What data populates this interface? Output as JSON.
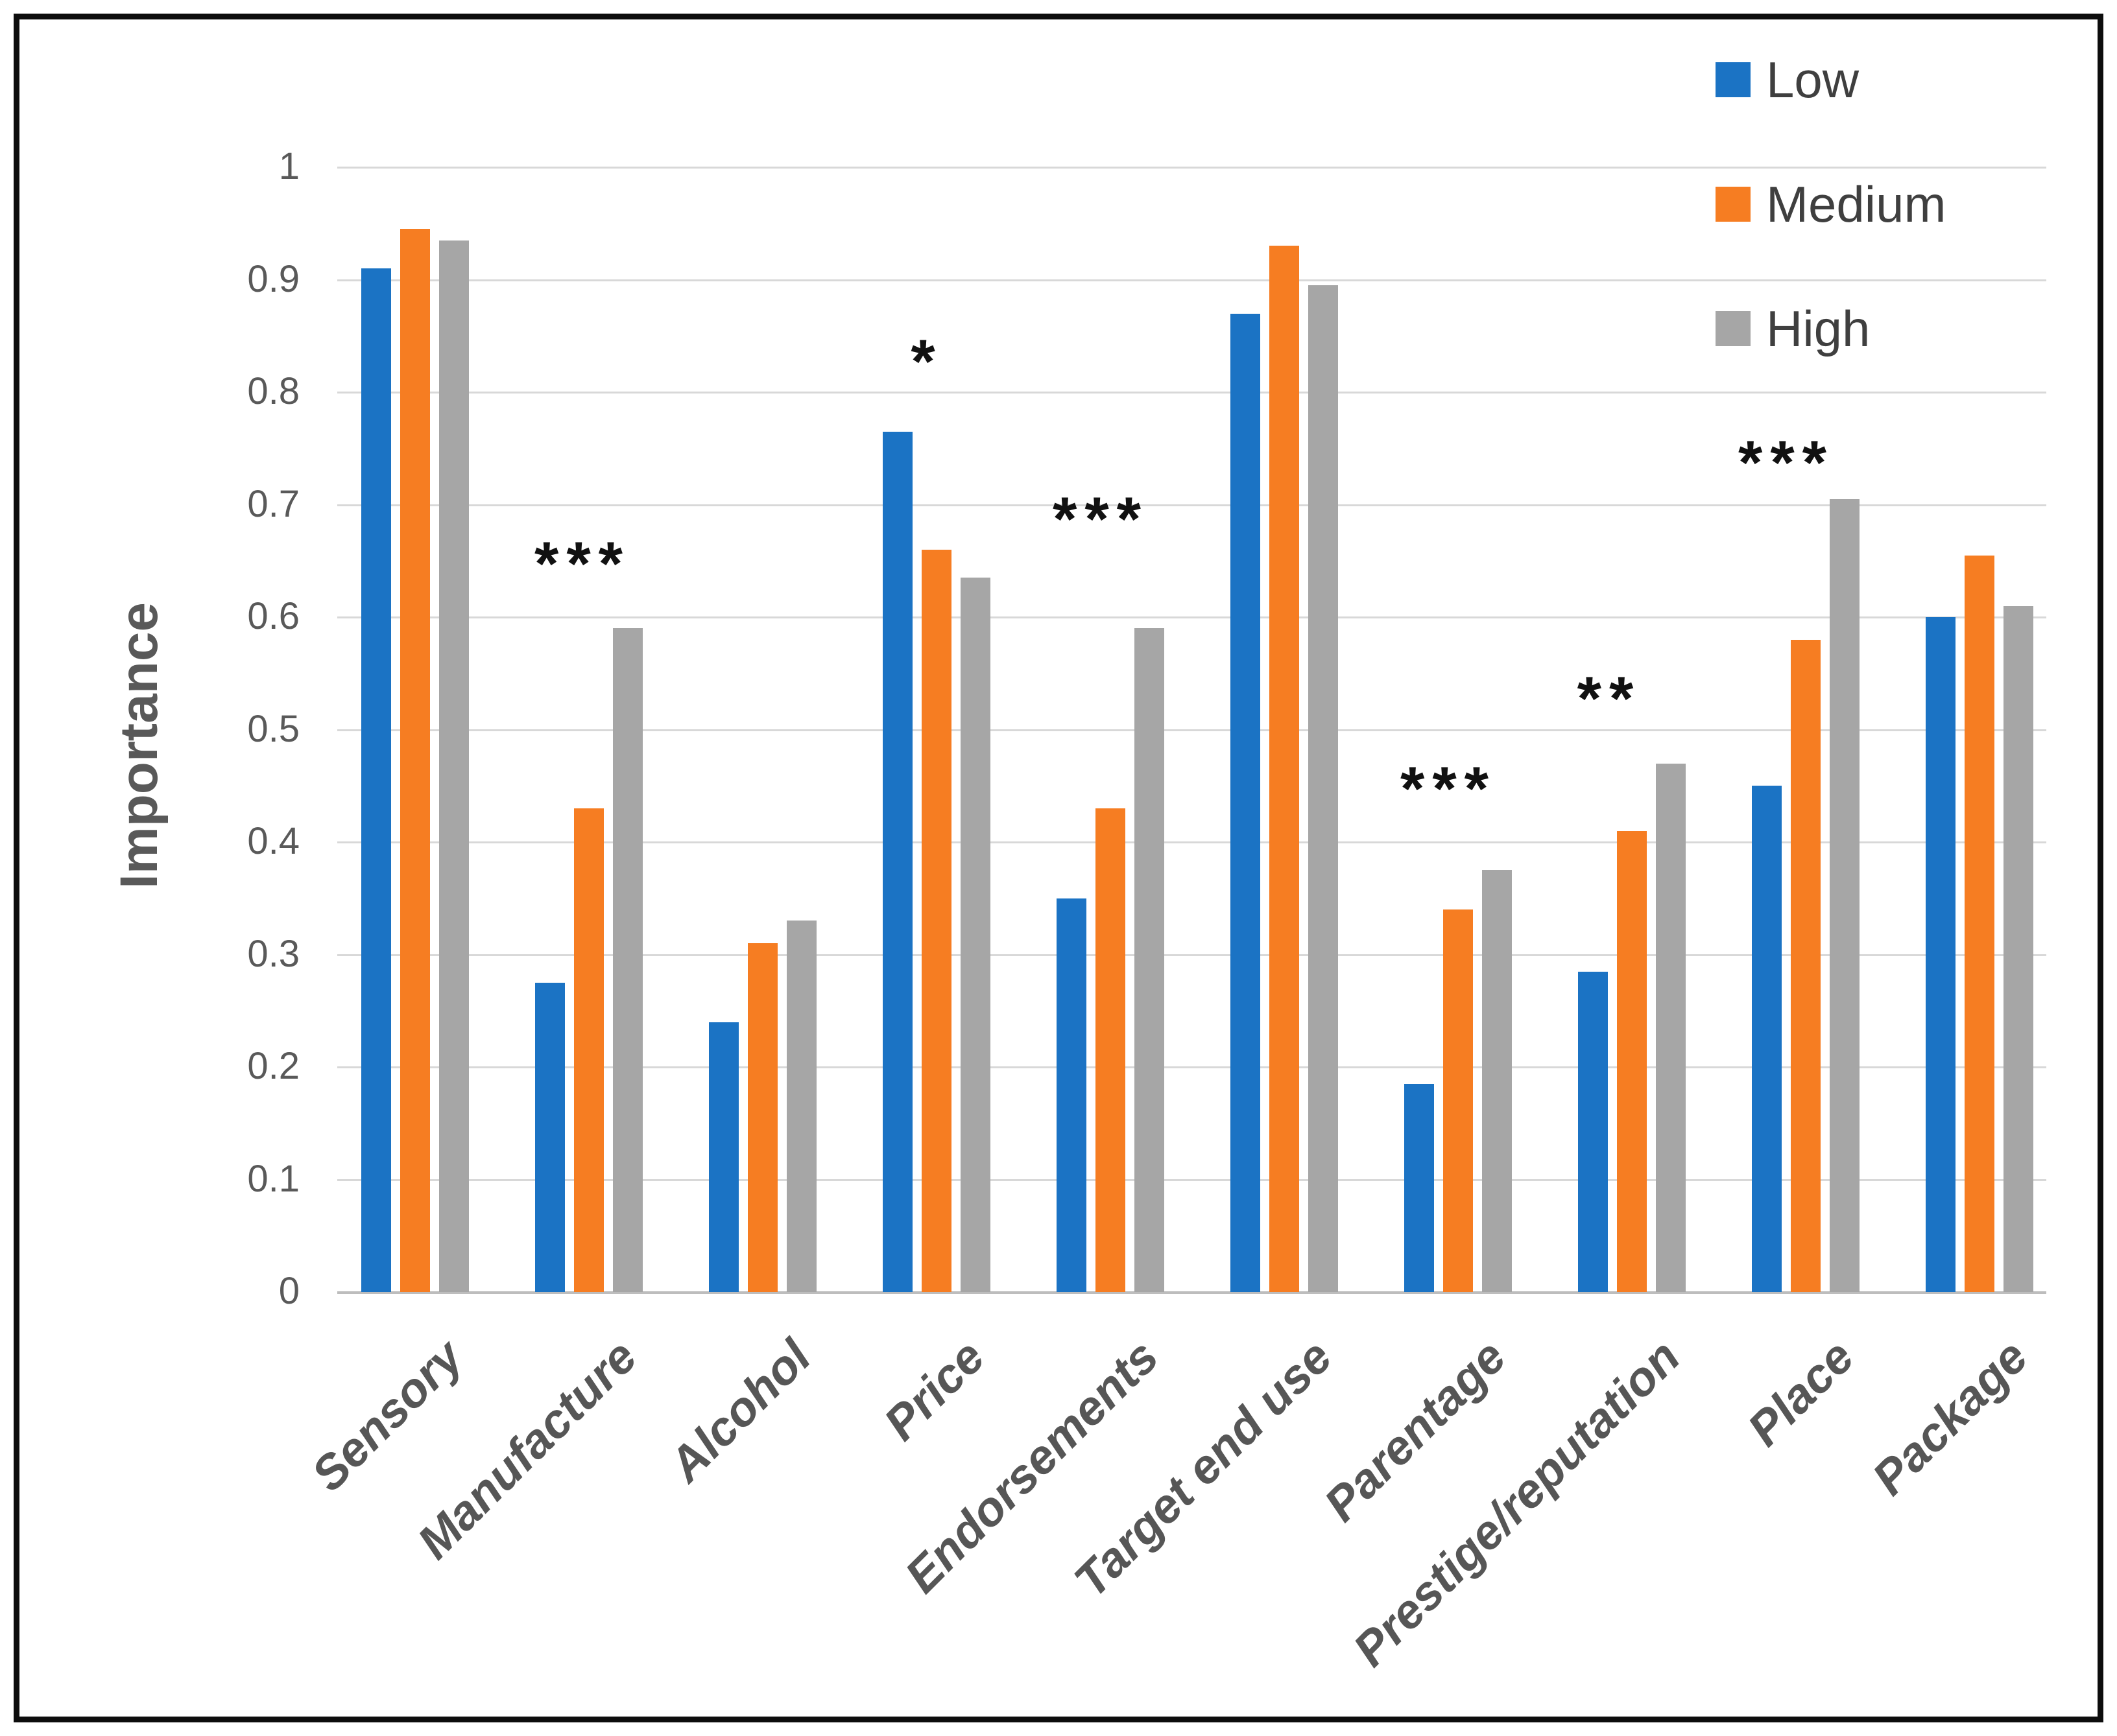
{
  "chart_data": {
    "type": "bar",
    "title": "",
    "ylabel": "Importance",
    "xlabel": "",
    "ylim": [
      0,
      1
    ],
    "grid": true,
    "legend_position": "top-right",
    "categories": [
      "Sensory",
      "Manufacture",
      "Alcohol",
      "Price",
      "Endorsements",
      "Target end use",
      "Parentage",
      "Prestige/reputation",
      "Place",
      "Package"
    ],
    "series": [
      {
        "name": "Low",
        "color": "#1B73C4",
        "values": [
          0.91,
          0.275,
          0.24,
          0.765,
          0.35,
          0.87,
          0.185,
          0.285,
          0.45,
          0.6
        ]
      },
      {
        "name": "Medium",
        "color": "#F67D22",
        "values": [
          0.945,
          0.43,
          0.31,
          0.66,
          0.43,
          0.93,
          0.34,
          0.41,
          0.58,
          0.655
        ]
      },
      {
        "name": "High",
        "color": "#A6A6A6",
        "values": [
          0.935,
          0.59,
          0.33,
          0.635,
          0.59,
          0.895,
          0.375,
          0.47,
          0.705,
          0.61
        ]
      }
    ],
    "yticks": [
      {
        "value": 1.0,
        "label": "1"
      },
      {
        "value": 0.9,
        "label": "0.9"
      },
      {
        "value": 0.8,
        "label": "0.8"
      },
      {
        "value": 0.7,
        "label": "0.7"
      },
      {
        "value": 0.6,
        "label": "0.6"
      },
      {
        "value": 0.5,
        "label": "0.5"
      },
      {
        "value": 0.4,
        "label": "0.4"
      },
      {
        "value": 0.3,
        "label": "0.3"
      },
      {
        "value": 0.2,
        "label": "0.2"
      },
      {
        "value": 0.1,
        "label": "0.1"
      },
      {
        "value": 0.0,
        "label": "0"
      }
    ],
    "significance": [
      {
        "category": "Manufacture",
        "marker": "***",
        "value": 0.65,
        "dx": -10
      },
      {
        "category": "Price",
        "marker": "*",
        "value": 0.83,
        "dx": -15
      },
      {
        "category": "Endorsements",
        "marker": "***",
        "value": 0.69,
        "dx": -15
      },
      {
        "category": "Parentage",
        "marker": "***",
        "value": 0.45,
        "dx": -15
      },
      {
        "category": "Prestige/reputation",
        "marker": "**",
        "value": 0.53,
        "dx": -35
      },
      {
        "category": "Place",
        "marker": "***",
        "value": 0.74,
        "dx": -30
      }
    ],
    "colors": {
      "background": "#ffffff",
      "frame_border": "#0d0d0d",
      "gridline": "#d8d8d8",
      "axis_line": "#bdbdbd",
      "axis_text": "#595959",
      "legend_text": "#3f3f3f",
      "significance_text": "#111111"
    }
  }
}
